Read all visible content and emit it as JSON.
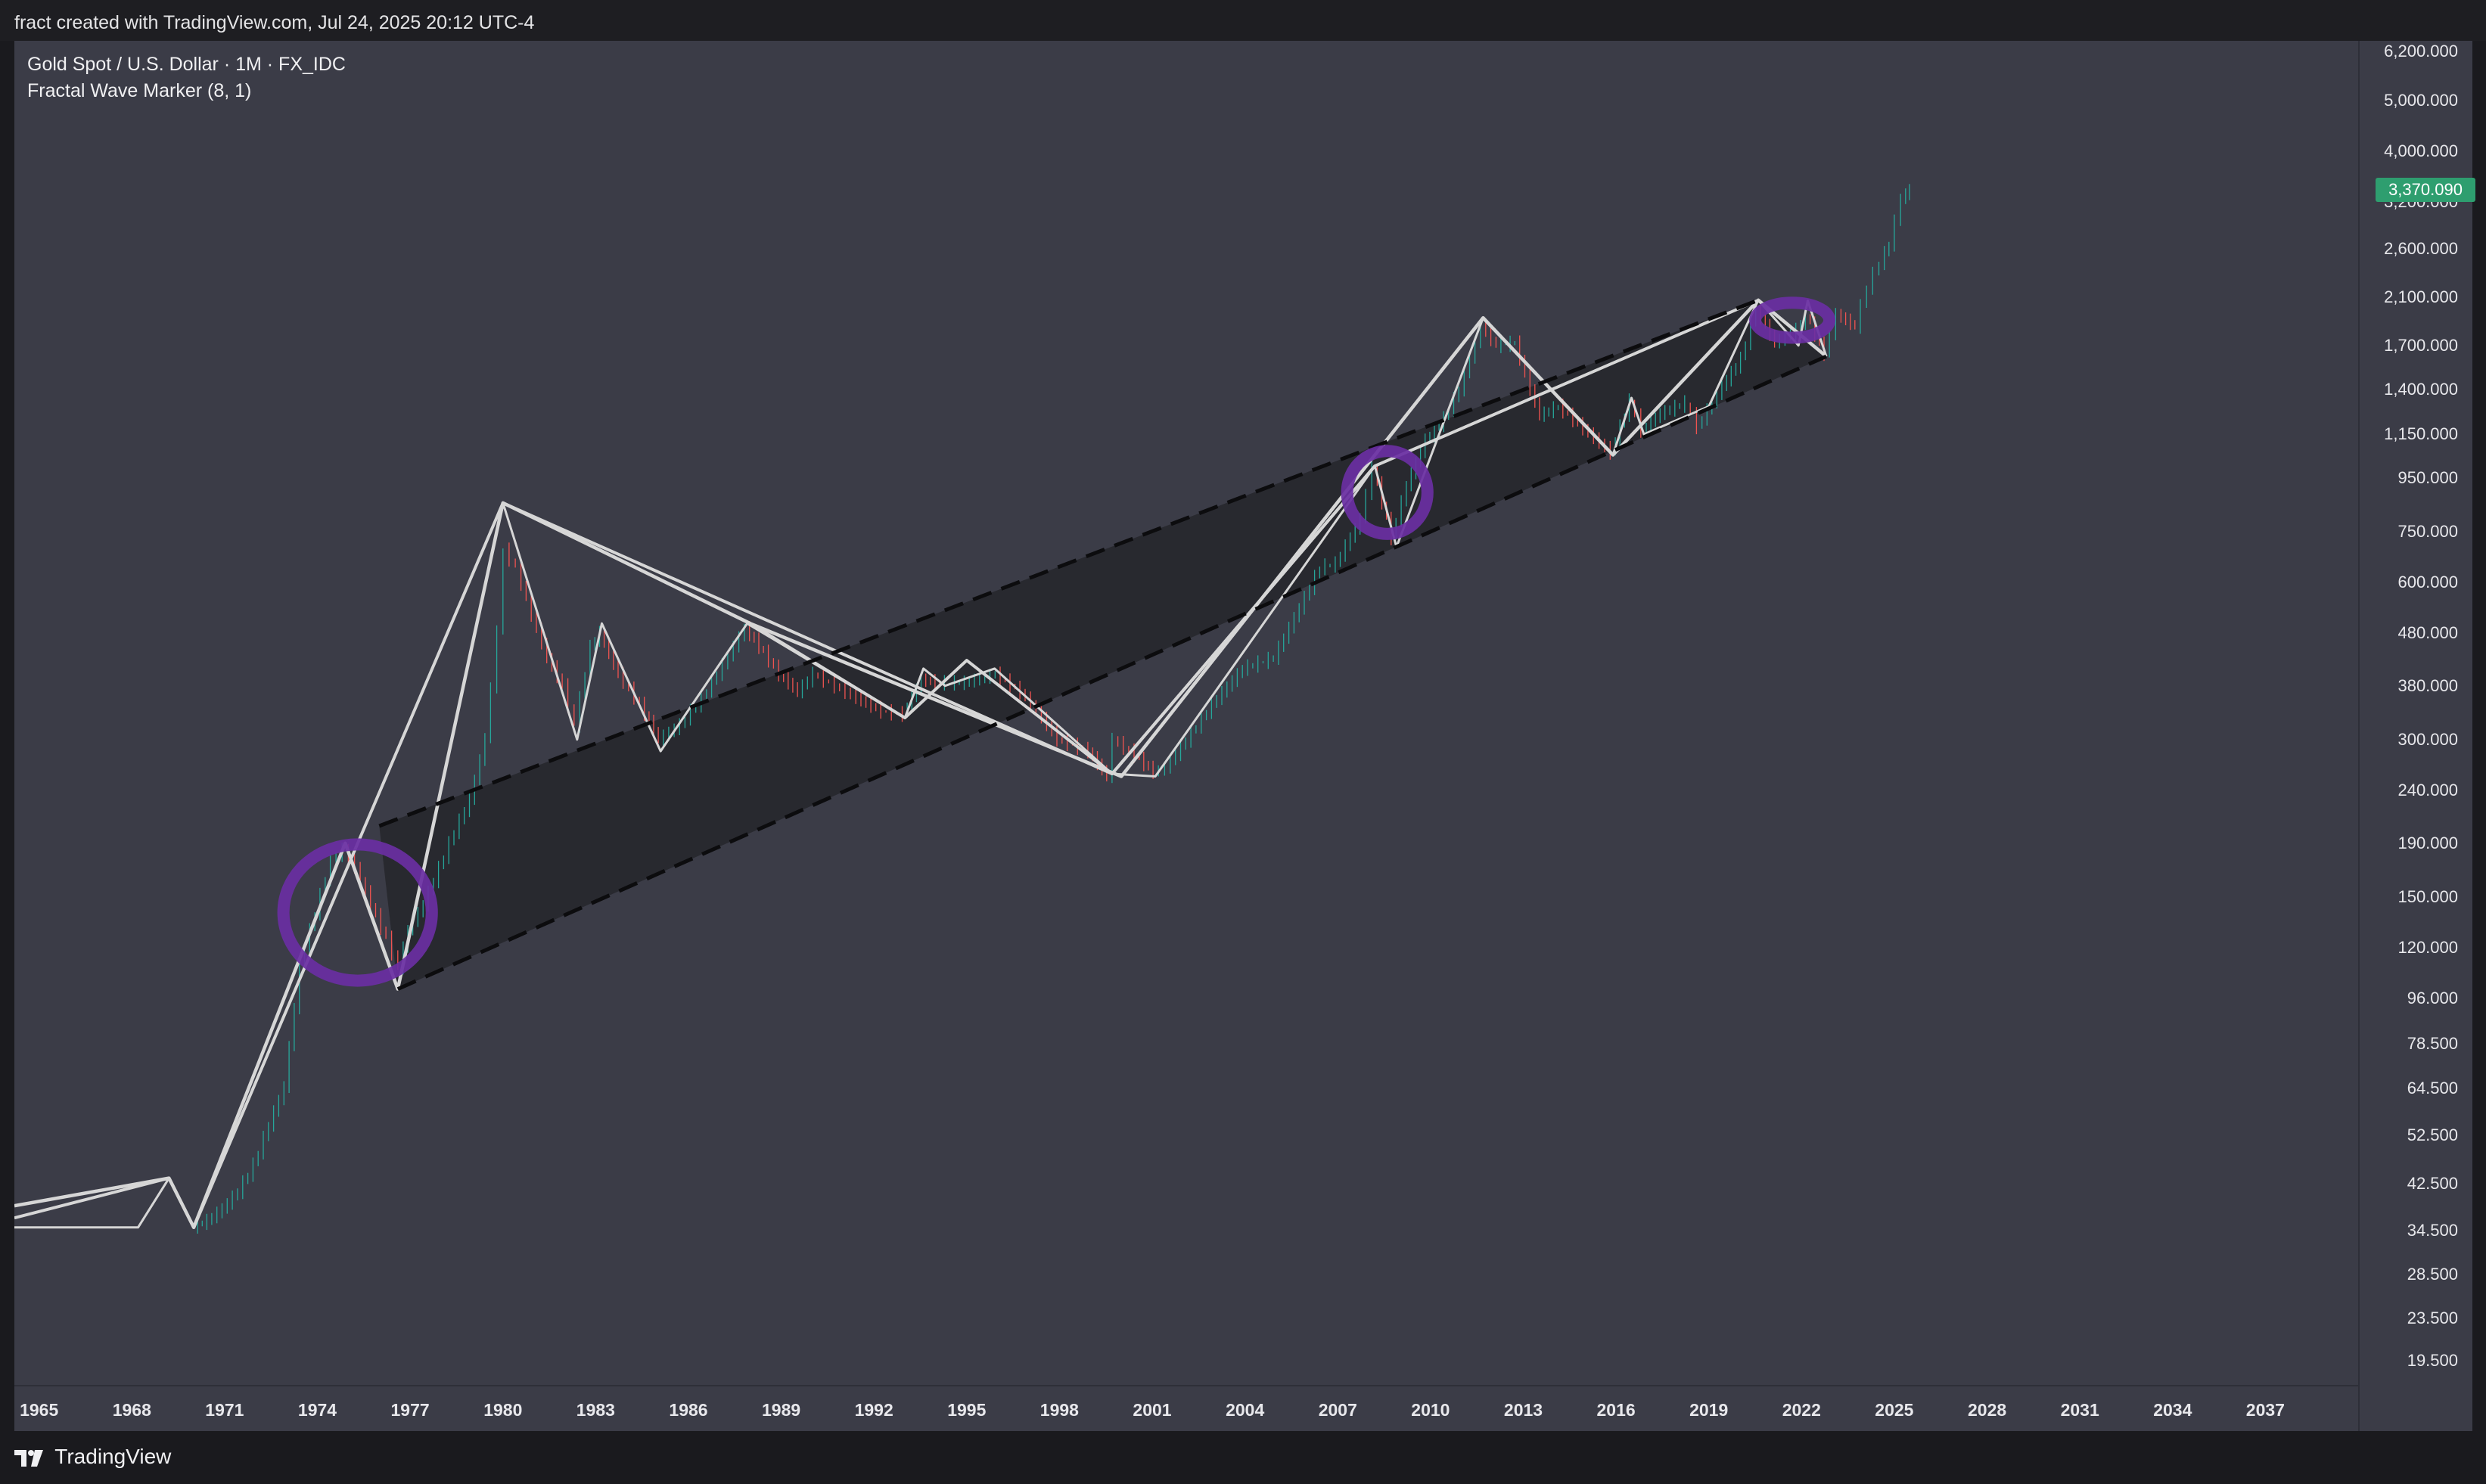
{
  "header": {
    "attribution": "fract created with TradingView.com, Jul 24, 2025 20:12 UTC-4"
  },
  "legend": {
    "symbol": "Gold Spot / U.S. Dollar · 1M · FX_IDC",
    "indicator": "Fractal Wave Marker (8, 1)"
  },
  "last_price": "3,370.090",
  "footer": {
    "brand": "TradingView"
  },
  "colors": {
    "background": "#3b3c47",
    "channel_fill": "#26262c",
    "wave_lines": "#d6d6d6",
    "circle_marker": "#6a2fa3",
    "up_candle": "#26a69a",
    "down_candle": "#ef5350",
    "last_price_badge": "#2e9e6f"
  },
  "chart_data": {
    "type": "line",
    "title": "Gold Spot / U.S. Dollar · 1M · FX_IDC",
    "scale": "log",
    "ylim": [
      17.5,
      6500
    ],
    "xlim": [
      1964.2,
      2040.0
    ],
    "price_ticks": [
      {
        "v": 6200,
        "label": "6,200.000"
      },
      {
        "v": 5000,
        "label": "5,000.000"
      },
      {
        "v": 4000,
        "label": "4,000.000"
      },
      {
        "v": 3200,
        "label": "3,200.000"
      },
      {
        "v": 2600,
        "label": "2,600.000"
      },
      {
        "v": 2100,
        "label": "2,100.000"
      },
      {
        "v": 1700,
        "label": "1,700.000"
      },
      {
        "v": 1400,
        "label": "1,400.000"
      },
      {
        "v": 1150,
        "label": "1,150.000"
      },
      {
        "v": 950,
        "label": "950.000"
      },
      {
        "v": 750,
        "label": "750.000"
      },
      {
        "v": 600,
        "label": "600.000"
      },
      {
        "v": 480,
        "label": "480.000"
      },
      {
        "v": 380,
        "label": "380.000"
      },
      {
        "v": 300,
        "label": "300.000"
      },
      {
        "v": 240,
        "label": "240.000"
      },
      {
        "v": 190,
        "label": "190.000"
      },
      {
        "v": 150,
        "label": "150.000"
      },
      {
        "v": 120,
        "label": "120.000"
      },
      {
        "v": 96,
        "label": "96.000"
      },
      {
        "v": 78.5,
        "label": "78.500"
      },
      {
        "v": 64.5,
        "label": "64.500"
      },
      {
        "v": 52.5,
        "label": "52.500"
      },
      {
        "v": 42.5,
        "label": "42.500"
      },
      {
        "v": 34.5,
        "label": "34.500"
      },
      {
        "v": 28.5,
        "label": "28.500"
      },
      {
        "v": 23.5,
        "label": "23.500"
      },
      {
        "v": 19.5,
        "label": "19.500"
      }
    ],
    "time_ticks": [
      "1965",
      "1968",
      "1971",
      "1974",
      "1977",
      "1980",
      "1983",
      "1986",
      "1989",
      "1992",
      "1995",
      "1998",
      "2001",
      "2004",
      "2007",
      "2010",
      "2013",
      "2016",
      "2019",
      "2022",
      "2025",
      "2028",
      "2031",
      "2034",
      "2037"
    ],
    "series": [
      {
        "kind": "price",
        "points": [
          [
            1969.9,
            35
          ],
          [
            1970.5,
            36
          ],
          [
            1971.0,
            38
          ],
          [
            1971.5,
            41
          ],
          [
            1972.0,
            46
          ],
          [
            1972.5,
            55
          ],
          [
            1973.0,
            65
          ],
          [
            1973.5,
            110
          ],
          [
            1974.0,
            140
          ],
          [
            1974.5,
            175
          ],
          [
            1974.9,
            185
          ],
          [
            1975.3,
            170
          ],
          [
            1975.8,
            145
          ],
          [
            1976.3,
            125
          ],
          [
            1976.7,
            110
          ],
          [
            1977.0,
            130
          ],
          [
            1977.5,
            145
          ],
          [
            1978.0,
            170
          ],
          [
            1978.5,
            200
          ],
          [
            1979.0,
            230
          ],
          [
            1979.5,
            300
          ],
          [
            1979.9,
            480
          ],
          [
            1980.1,
            690
          ],
          [
            1980.5,
            640
          ],
          [
            1981.0,
            520
          ],
          [
            1981.5,
            430
          ],
          [
            1982.0,
            380
          ],
          [
            1982.4,
            320
          ],
          [
            1982.9,
            450
          ],
          [
            1983.2,
            480
          ],
          [
            1983.8,
            400
          ],
          [
            1984.5,
            350
          ],
          [
            1985.1,
            300
          ],
          [
            1985.8,
            320
          ],
          [
            1986.5,
            360
          ],
          [
            1987.0,
            400
          ],
          [
            1987.9,
            490
          ],
          [
            1988.5,
            440
          ],
          [
            1989.0,
            400
          ],
          [
            1989.6,
            370
          ],
          [
            1990.1,
            400
          ],
          [
            1990.8,
            380
          ],
          [
            1991.5,
            360
          ],
          [
            1992.3,
            340
          ],
          [
            1993.0,
            335
          ],
          [
            1993.6,
            390
          ],
          [
            1994.2,
            385
          ],
          [
            1995.0,
            385
          ],
          [
            1996.0,
            400
          ],
          [
            1996.8,
            370
          ],
          [
            1997.5,
            330
          ],
          [
            1998.0,
            300
          ],
          [
            1999.0,
            285
          ],
          [
            1999.6,
            255
          ],
          [
            1999.8,
            300
          ],
          [
            2000.5,
            280
          ],
          [
            2001.1,
            260
          ],
          [
            2001.5,
            265
          ],
          [
            2002.0,
            290
          ],
          [
            2003.0,
            350
          ],
          [
            2004.0,
            410
          ],
          [
            2005.0,
            430
          ],
          [
            2006.0,
            560
          ],
          [
            2006.5,
            640
          ],
          [
            2007.0,
            650
          ],
          [
            2007.8,
            790
          ],
          [
            2008.2,
            1000
          ],
          [
            2008.8,
            730
          ],
          [
            2009.3,
            920
          ],
          [
            2009.9,
            1120
          ],
          [
            2010.5,
            1230
          ],
          [
            2011.0,
            1400
          ],
          [
            2011.7,
            1850
          ],
          [
            2012.2,
            1700
          ],
          [
            2012.8,
            1720
          ],
          [
            2013.3,
            1400
          ],
          [
            2013.6,
            1250
          ],
          [
            2014.2,
            1300
          ],
          [
            2015.0,
            1180
          ],
          [
            2015.9,
            1060
          ],
          [
            2016.5,
            1330
          ],
          [
            2016.9,
            1170
          ],
          [
            2017.5,
            1260
          ],
          [
            2018.3,
            1320
          ],
          [
            2018.7,
            1190
          ],
          [
            2019.5,
            1420
          ],
          [
            2020.1,
            1600
          ],
          [
            2020.6,
            2000
          ],
          [
            2021.2,
            1720
          ],
          [
            2021.9,
            1820
          ],
          [
            2022.2,
            1950
          ],
          [
            2022.8,
            1640
          ],
          [
            2023.2,
            1950
          ],
          [
            2023.8,
            1850
          ],
          [
            2024.2,
            2200
          ],
          [
            2024.6,
            2450
          ],
          [
            2024.9,
            2650
          ],
          [
            2025.3,
            3250
          ],
          [
            2025.55,
            3370
          ]
        ]
      },
      {
        "kind": "wave_1",
        "points": [
          [
            1964.2,
            38.5
          ],
          [
            1969.2,
            43.5
          ],
          [
            1970.0,
            35
          ],
          [
            1974.9,
            190
          ],
          [
            1976.6,
            100
          ],
          [
            1980.0,
            850
          ],
          [
            1988.0,
            500
          ],
          [
            2000.0,
            255
          ],
          [
            2011.7,
            1920
          ],
          [
            2015.9,
            1050
          ],
          [
            2020.6,
            2075
          ],
          [
            2022.8,
            1620
          ]
        ]
      },
      {
        "kind": "wave_2",
        "points": [
          [
            1964.2,
            36.5
          ],
          [
            1969.2,
            43.5
          ],
          [
            1970.0,
            35
          ],
          [
            1980.0,
            850
          ],
          [
            1999.7,
            258
          ],
          [
            2008.2,
            1000
          ],
          [
            2020.6,
            2075
          ]
        ]
      },
      {
        "kind": "wave_3",
        "points": [
          [
            1964.2,
            35
          ],
          [
            1968.2,
            35
          ],
          [
            1969.2,
            43.5
          ],
          [
            1970.0,
            35
          ],
          [
            1974.9,
            190
          ],
          [
            1976.6,
            100
          ],
          [
            1980.0,
            850
          ],
          [
            1982.4,
            300
          ],
          [
            1983.2,
            500
          ],
          [
            1985.1,
            285
          ],
          [
            1987.9,
            500
          ],
          [
            1993.0,
            330
          ],
          [
            1993.6,
            410
          ],
          [
            1994.3,
            380
          ],
          [
            1995.9,
            410
          ],
          [
            1999.7,
            258
          ],
          [
            2001.1,
            255
          ],
          [
            2008.2,
            1000
          ],
          [
            2008.9,
            700
          ],
          [
            2011.7,
            1920
          ],
          [
            2015.9,
            1050
          ],
          [
            2016.5,
            1350
          ],
          [
            2016.9,
            1150
          ],
          [
            2019.0,
            1300
          ],
          [
            2020.6,
            2075
          ],
          [
            2021.9,
            1700
          ],
          [
            2022.2,
            2070
          ],
          [
            2022.8,
            1620
          ]
        ]
      },
      {
        "kind": "wave_4",
        "points": [
          [
            1988.0,
            500
          ],
          [
            1993.0,
            330
          ],
          [
            1995.0,
            425
          ],
          [
            1999.7,
            258
          ],
          [
            2008.2,
            1000
          ]
        ]
      },
      {
        "kind": "channel_upper",
        "points": [
          [
            1976.0,
            205
          ],
          [
            2020.6,
            2075
          ]
        ]
      },
      {
        "kind": "channel_lower",
        "points": [
          [
            1976.6,
            100
          ],
          [
            2022.8,
            1620
          ]
        ]
      }
    ],
    "highlights": [
      {
        "center": [
          1975.3,
          140
        ],
        "rx": 2.4,
        "ry_factor": 1.35
      },
      {
        "center": [
          2008.6,
          890
        ],
        "rx": 1.3,
        "ry_factor": 1.2
      },
      {
        "center": [
          2021.7,
          1900
        ],
        "rx": 1.2,
        "ry_factor": 1.08
      }
    ]
  }
}
